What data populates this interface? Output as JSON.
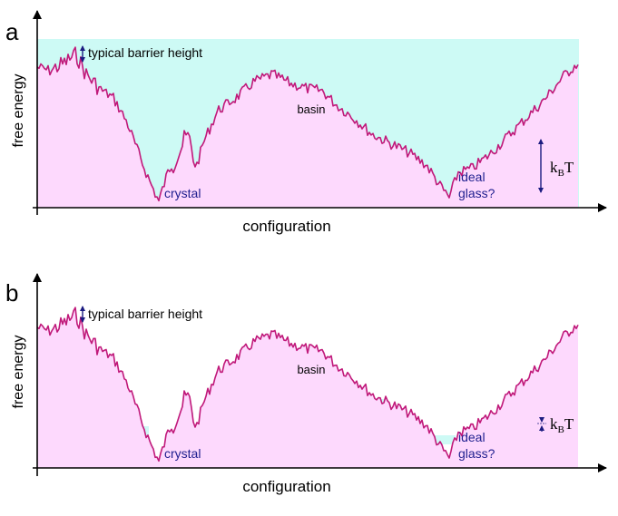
{
  "colors": {
    "landscape_fill": "#fdd9fd",
    "water_fill": "#cdfaf5",
    "curve": "#c0197a",
    "axis": "#000000",
    "annotation_arrow": "#1b1b80",
    "label_text": "#000000",
    "state_label_text": "#1f1f8f"
  },
  "panels": [
    {
      "id": "a",
      "panel_label": "a",
      "ylabel": "free energy",
      "xlabel": "configuration",
      "barrier_label": "typical barrier height",
      "basin_label": "basin",
      "crystal_label": "crystal",
      "glass_label_line1": "ideal",
      "glass_label_line2": "glass?",
      "kbt_k": "k",
      "kbt_sub": "B",
      "kbt_t": "T",
      "kbt_size": "large"
    },
    {
      "id": "b",
      "panel_label": "b",
      "ylabel": "free energy",
      "xlabel": "configuration",
      "barrier_label": "typical barrier height",
      "basin_label": "basin",
      "crystal_label": "crystal",
      "glass_label_line1": "ideal",
      "glass_label_line2": "glass?",
      "kbt_k": "k",
      "kbt_sub": "B",
      "kbt_t": "T",
      "kbt_size": "small"
    }
  ]
}
